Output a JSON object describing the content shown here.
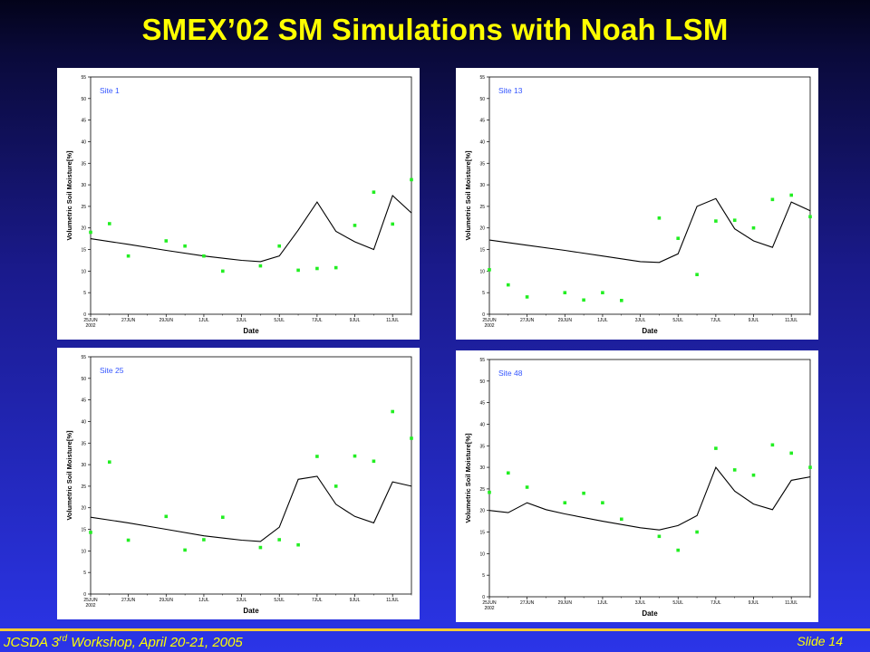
{
  "slide": {
    "title": "SMEX’02 SM Simulations with Noah LSM",
    "footer_left_pre": "JCSDA 3",
    "footer_left_sup": "rd",
    "footer_left_post": " Workshop, April 20-21, 2005",
    "footer_right": "Slide 14"
  },
  "colors": {
    "title": "#ffff00",
    "observed_marker": "#22ee22",
    "simulated_line": "#000000",
    "site_label": "#3355ff"
  },
  "chart_data": [
    {
      "type": "line",
      "title": "Site 1",
      "xlabel": "Date",
      "ylabel": "Volumetric Soil Moisture[%]",
      "xlim": [
        0,
        17
      ],
      "ylim": [
        0,
        55
      ],
      "yticks": [
        0,
        5,
        10,
        15,
        20,
        25,
        30,
        35,
        40,
        45,
        50,
        55
      ],
      "xticks": [
        {
          "x": 0,
          "label": "25JUN",
          "sub": "2002"
        },
        {
          "x": 2,
          "label": "27JUN"
        },
        {
          "x": 4,
          "label": "29JUN"
        },
        {
          "x": 6,
          "label": "1JUL"
        },
        {
          "x": 8,
          "label": "3JUL"
        },
        {
          "x": 10,
          "label": "5JUL"
        },
        {
          "x": 12,
          "label": "7JUL"
        },
        {
          "x": 14,
          "label": "9JUL"
        },
        {
          "x": 16,
          "label": "11JUL"
        }
      ],
      "series": [
        {
          "kind": "line",
          "x": [
            0,
            2,
            4,
            6,
            8,
            9,
            10,
            11,
            12,
            13,
            14,
            15,
            16,
            17
          ],
          "y": [
            17.5,
            16.2,
            14.8,
            13.5,
            12.5,
            12.2,
            13.5,
            19.5,
            26,
            19.2,
            16.8,
            15,
            27.5,
            23.5
          ]
        },
        {
          "kind": "markers",
          "x": [
            0,
            1,
            2,
            4,
            5,
            6,
            7,
            9,
            10,
            11,
            12,
            13,
            14,
            15,
            16,
            17
          ],
          "y": [
            19,
            21,
            13.5,
            17,
            15.8,
            13.5,
            10,
            11.2,
            15.8,
            10.2,
            10.6,
            10.8,
            20.6,
            28.3,
            20.9,
            31.2
          ]
        }
      ]
    },
    {
      "type": "line",
      "title": "Site 13",
      "xlabel": "Date",
      "ylabel": "Volumetric Soil Moisture[%]",
      "xlim": [
        0,
        17
      ],
      "ylim": [
        0,
        55
      ],
      "yticks": [
        0,
        5,
        10,
        15,
        20,
        25,
        30,
        35,
        40,
        45,
        50,
        55
      ],
      "xticks": [
        {
          "x": 0,
          "label": "25JUN",
          "sub": "2002"
        },
        {
          "x": 2,
          "label": "27JUN"
        },
        {
          "x": 4,
          "label": "29JUN"
        },
        {
          "x": 6,
          "label": "1JUL"
        },
        {
          "x": 8,
          "label": "3JUL"
        },
        {
          "x": 10,
          "label": "5JUL"
        },
        {
          "x": 12,
          "label": "7JUL"
        },
        {
          "x": 14,
          "label": "9JUL"
        },
        {
          "x": 16,
          "label": "11JUL"
        }
      ],
      "series": [
        {
          "kind": "line",
          "x": [
            0,
            2,
            4,
            6,
            8,
            9,
            10,
            11,
            12,
            13,
            14,
            15,
            16,
            17
          ],
          "y": [
            17.2,
            16,
            14.8,
            13.5,
            12.2,
            12,
            14,
            25,
            26.8,
            19.8,
            17,
            15.5,
            26,
            24
          ]
        },
        {
          "kind": "markers",
          "x": [
            0,
            1,
            2,
            4,
            5,
            6,
            7,
            9,
            10,
            11,
            12,
            13,
            14,
            15,
            16,
            17
          ],
          "y": [
            10.3,
            6.8,
            4,
            5,
            3.3,
            5,
            3.2,
            22.3,
            17.6,
            9.2,
            21.6,
            21.8,
            20,
            26.6,
            27.6,
            22.6
          ]
        }
      ]
    },
    {
      "type": "line",
      "title": "Site 25",
      "xlabel": "Date",
      "ylabel": "Volumetric Soil Moisture[%]",
      "xlim": [
        0,
        17
      ],
      "ylim": [
        0,
        55
      ],
      "yticks": [
        0,
        5,
        10,
        15,
        20,
        25,
        30,
        35,
        40,
        45,
        50,
        55
      ],
      "xticks": [
        {
          "x": 0,
          "label": "25JUN",
          "sub": "2002"
        },
        {
          "x": 2,
          "label": "27JUN"
        },
        {
          "x": 4,
          "label": "29JUN"
        },
        {
          "x": 6,
          "label": "1JUL"
        },
        {
          "x": 8,
          "label": "3JUL"
        },
        {
          "x": 10,
          "label": "5JUL"
        },
        {
          "x": 12,
          "label": "7JUL"
        },
        {
          "x": 14,
          "label": "9JUL"
        },
        {
          "x": 16,
          "label": "11JUL"
        }
      ],
      "series": [
        {
          "kind": "line",
          "x": [
            0,
            2,
            4,
            6,
            8,
            9,
            10,
            11,
            12,
            13,
            14,
            15,
            16,
            17
          ],
          "y": [
            17.8,
            16.5,
            15,
            13.5,
            12.5,
            12.2,
            15.5,
            26.6,
            27.3,
            20.8,
            18,
            16.5,
            26,
            25
          ]
        },
        {
          "kind": "markers",
          "x": [
            0,
            1,
            2,
            4,
            5,
            6,
            7,
            9,
            10,
            11,
            12,
            13,
            14,
            15,
            16,
            17
          ],
          "y": [
            14.3,
            30.6,
            12.5,
            18,
            10.2,
            12.6,
            17.8,
            10.8,
            12.6,
            11.4,
            31.9,
            25,
            32,
            30.8,
            42.3,
            36.1
          ]
        }
      ]
    },
    {
      "type": "line",
      "title": "Site 48",
      "xlabel": "Date",
      "ylabel": "Volumetric Soil Moisture[%]",
      "xlim": [
        0,
        17
      ],
      "ylim": [
        0,
        55
      ],
      "yticks": [
        0,
        5,
        10,
        15,
        20,
        25,
        30,
        35,
        40,
        45,
        50,
        55
      ],
      "xticks": [
        {
          "x": 0,
          "label": "25JUN",
          "sub": "2002"
        },
        {
          "x": 2,
          "label": "27JUN"
        },
        {
          "x": 4,
          "label": "29JUN"
        },
        {
          "x": 6,
          "label": "1JUL"
        },
        {
          "x": 8,
          "label": "3JUL"
        },
        {
          "x": 10,
          "label": "5JUL"
        },
        {
          "x": 12,
          "label": "7JUL"
        },
        {
          "x": 14,
          "label": "9JUL"
        },
        {
          "x": 16,
          "label": "11JUL"
        }
      ],
      "series": [
        {
          "kind": "line",
          "x": [
            0,
            1,
            2,
            3,
            4,
            6,
            8,
            9,
            10,
            11,
            12,
            13,
            14,
            15,
            16,
            17
          ],
          "y": [
            20,
            19.5,
            21.8,
            20.2,
            19.2,
            17.5,
            16,
            15.5,
            16.5,
            18.8,
            30,
            24.5,
            21.5,
            20.2,
            27,
            27.8
          ]
        },
        {
          "kind": "markers",
          "x": [
            0,
            1,
            2,
            4,
            5,
            6,
            7,
            9,
            10,
            11,
            12,
            13,
            14,
            15,
            16,
            17
          ],
          "y": [
            24.2,
            28.7,
            25.4,
            21.8,
            24,
            21.8,
            18,
            14,
            10.8,
            15,
            34.4,
            29.4,
            28.2,
            35.2,
            33.3,
            30
          ]
        }
      ]
    }
  ]
}
